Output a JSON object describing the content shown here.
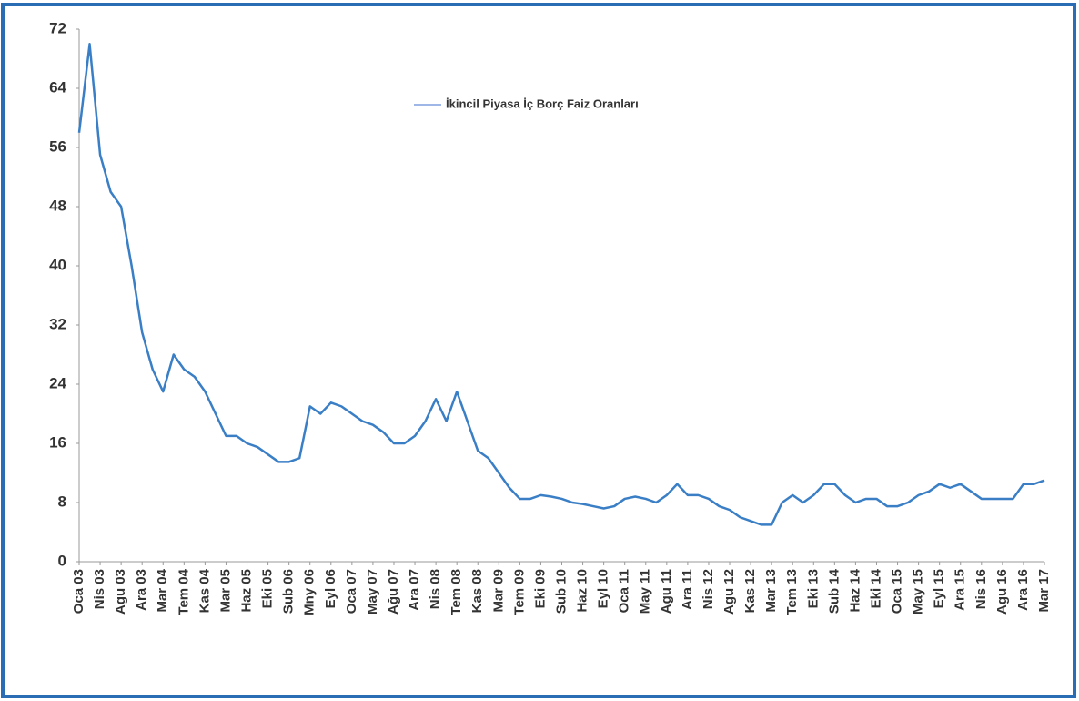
{
  "chart_data": {
    "type": "line",
    "categories": [
      "Oca 03",
      null,
      "Nis 03",
      null,
      "Agu 03",
      null,
      "Ara 03",
      null,
      "Mar 04",
      null,
      "Tem 04",
      null,
      "Kas 04",
      null,
      "Mar 05",
      null,
      "Haz 05",
      null,
      "Eki 05",
      null,
      "Sub 06",
      null,
      "Mny 06",
      null,
      "Eyl 06",
      null,
      "Oca 07",
      null,
      "May 07",
      null,
      "Ağu 07",
      null,
      "Ara 07",
      null,
      "Nis 08",
      null,
      "Tem 08",
      null,
      "Kas 08",
      null,
      "Mar 09",
      null,
      "Tem 09",
      null,
      "Eki 09",
      null,
      "Sub 10",
      null,
      "Haz 10",
      null,
      "Eyl 10",
      null,
      "Oca 11",
      null,
      "May 11",
      null,
      "Agu 11",
      null,
      "Ara 11",
      null,
      "Nis 12",
      null,
      "Agu 12",
      null,
      "Kas 12",
      null,
      "Mar 13",
      null,
      "Tem 13",
      null,
      "Eki 13",
      null,
      "Sub 14",
      null,
      "Haz 14",
      null,
      "Eki 14",
      null,
      "Oca 15",
      null,
      "May 15",
      null,
      "Eyl 15",
      null,
      "Ara 15",
      null,
      "Nis 16",
      null,
      "Agu 16",
      null,
      "Ara 16",
      null,
      "Mar 17"
    ],
    "series": [
      {
        "name": "İkincil Piyasa İç Borç Faiz Oranları",
        "color": "#3a7fc6",
        "values": [
          58,
          70,
          55,
          50,
          48,
          40,
          31,
          26,
          23,
          28,
          26,
          25,
          23,
          20,
          17,
          17,
          16,
          15.5,
          14.5,
          13.5,
          13.5,
          14,
          21,
          20,
          21.5,
          21,
          20,
          19,
          18.5,
          17.5,
          16,
          16,
          17,
          19,
          22,
          19,
          23,
          19,
          15,
          14,
          12,
          10,
          8.5,
          8.5,
          9,
          8.8,
          8.5,
          8,
          7.8,
          7.5,
          7.2,
          7.5,
          8.5,
          8.8,
          8.5,
          8,
          9,
          10.5,
          9,
          9,
          8.5,
          7.5,
          7,
          6,
          5.5,
          5,
          5,
          8,
          9,
          8,
          9,
          10.5,
          10.5,
          9,
          8,
          8.5,
          8.5,
          7.5,
          7.5,
          8,
          9,
          9.5,
          10.5,
          10,
          10.5,
          9.5,
          8.5,
          8.5,
          8.5,
          8.5,
          10.5,
          10.5,
          11
        ]
      }
    ],
    "ylim": [
      0,
      72
    ],
    "yticks": [
      0,
      8,
      16,
      24,
      32,
      40,
      48,
      56,
      64,
      72
    ]
  }
}
